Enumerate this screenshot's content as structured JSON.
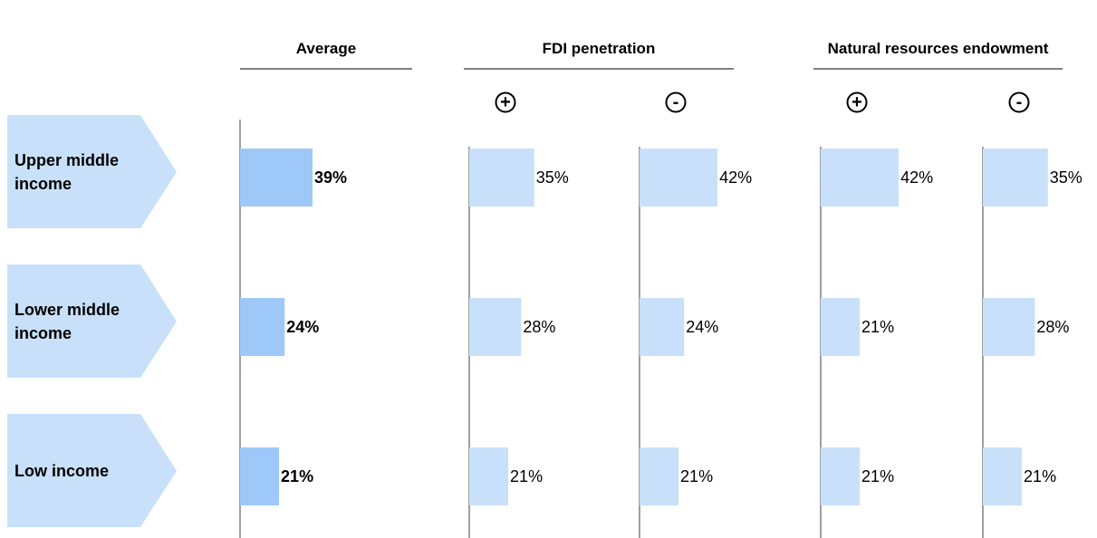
{
  "chart_data": {
    "type": "bar",
    "categories": [
      "Upper middle income",
      "Lower middle income",
      "Low income"
    ],
    "groups": [
      {
        "title": "Average",
        "columns": [
          {
            "color": "#9ec8f7",
            "values": [
              39,
              24,
              21
            ],
            "value_labels": [
              "39%",
              "24%",
              "21%"
            ]
          }
        ]
      },
      {
        "title": "FDI penetration",
        "columns": [
          {
            "name": "+",
            "color": "#c8e0fa",
            "values": [
              35,
              28,
              21
            ],
            "value_labels": [
              "35%",
              "28%",
              "21%"
            ]
          },
          {
            "name": "-",
            "color": "#c8e0fa",
            "values": [
              42,
              24,
              21
            ],
            "value_labels": [
              "42%",
              "24%",
              "21%"
            ]
          }
        ]
      },
      {
        "title": "Natural resources endowment",
        "columns": [
          {
            "name": "+",
            "color": "#c8e0fa",
            "values": [
              42,
              21,
              21
            ],
            "value_labels": [
              "42%",
              "21%",
              "21%"
            ]
          },
          {
            "name": "-",
            "color": "#c8e0fa",
            "values": [
              35,
              28,
              21
            ],
            "value_labels": [
              "35%",
              "28%",
              "21%"
            ]
          }
        ]
      }
    ]
  }
}
